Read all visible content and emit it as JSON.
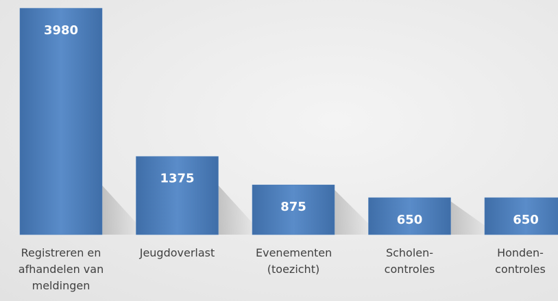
{
  "chart_data": {
    "type": "bar",
    "categories": [
      "Registreren en afhandelen van meldingen",
      "Jeugdoverlast",
      "Evenementen (toezicht)",
      "Scholen-controles",
      "Honden-controles"
    ],
    "values": [
      3980,
      1375,
      875,
      650,
      650
    ],
    "color": "#4f81bd"
  }
}
